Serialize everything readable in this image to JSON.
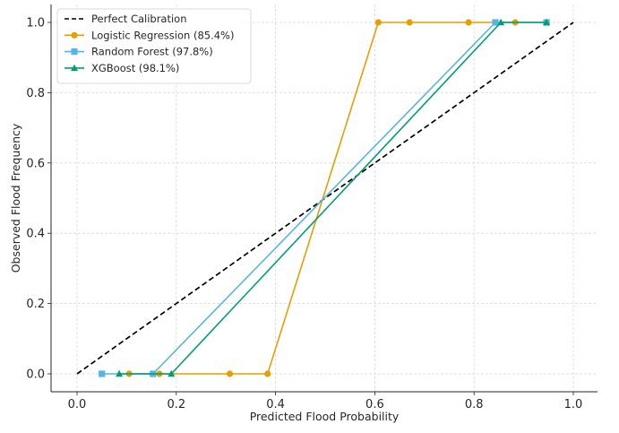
{
  "chart_data": {
    "type": "line",
    "title": "",
    "xlabel": "Predicted Flood Probability",
    "ylabel": "Observed Flood Frequency",
    "xlim": [
      -0.05,
      1.05
    ],
    "ylim": [
      -0.05,
      1.05
    ],
    "xticks": [
      "0.0",
      "0.2",
      "0.4",
      "0.6",
      "0.8",
      "1.0"
    ],
    "yticks": [
      "0.0",
      "0.2",
      "0.4",
      "0.6",
      "0.8",
      "1.0"
    ],
    "grid": true,
    "legend_position": "top-left",
    "series": [
      {
        "name": "Perfect Calibration",
        "color": "#000000",
        "style": "dashed",
        "marker": "none",
        "x": [
          0.0,
          1.0
        ],
        "y": [
          0.0,
          1.0
        ]
      },
      {
        "name": "Logistic Regression (85.4%)",
        "color": "#E69F00",
        "style": "solid",
        "marker": "circle",
        "x": [
          0.105,
          0.166,
          0.308,
          0.384,
          0.607,
          0.67,
          0.789,
          0.883
        ],
        "y": [
          0,
          0,
          0,
          0,
          1,
          1,
          1,
          1
        ]
      },
      {
        "name": "Random Forest (97.8%)",
        "color": "#56B4E9",
        "style": "solid",
        "marker": "square",
        "x": [
          0.05,
          0.153,
          0.843,
          0.946
        ],
        "y": [
          0,
          0,
          1,
          1
        ]
      },
      {
        "name": "XGBoost (98.1%)",
        "color": "#009E73",
        "style": "solid",
        "marker": "triangle",
        "x": [
          0.085,
          0.19,
          0.854,
          0.946
        ],
        "y": [
          0,
          0,
          1,
          1
        ]
      }
    ]
  }
}
